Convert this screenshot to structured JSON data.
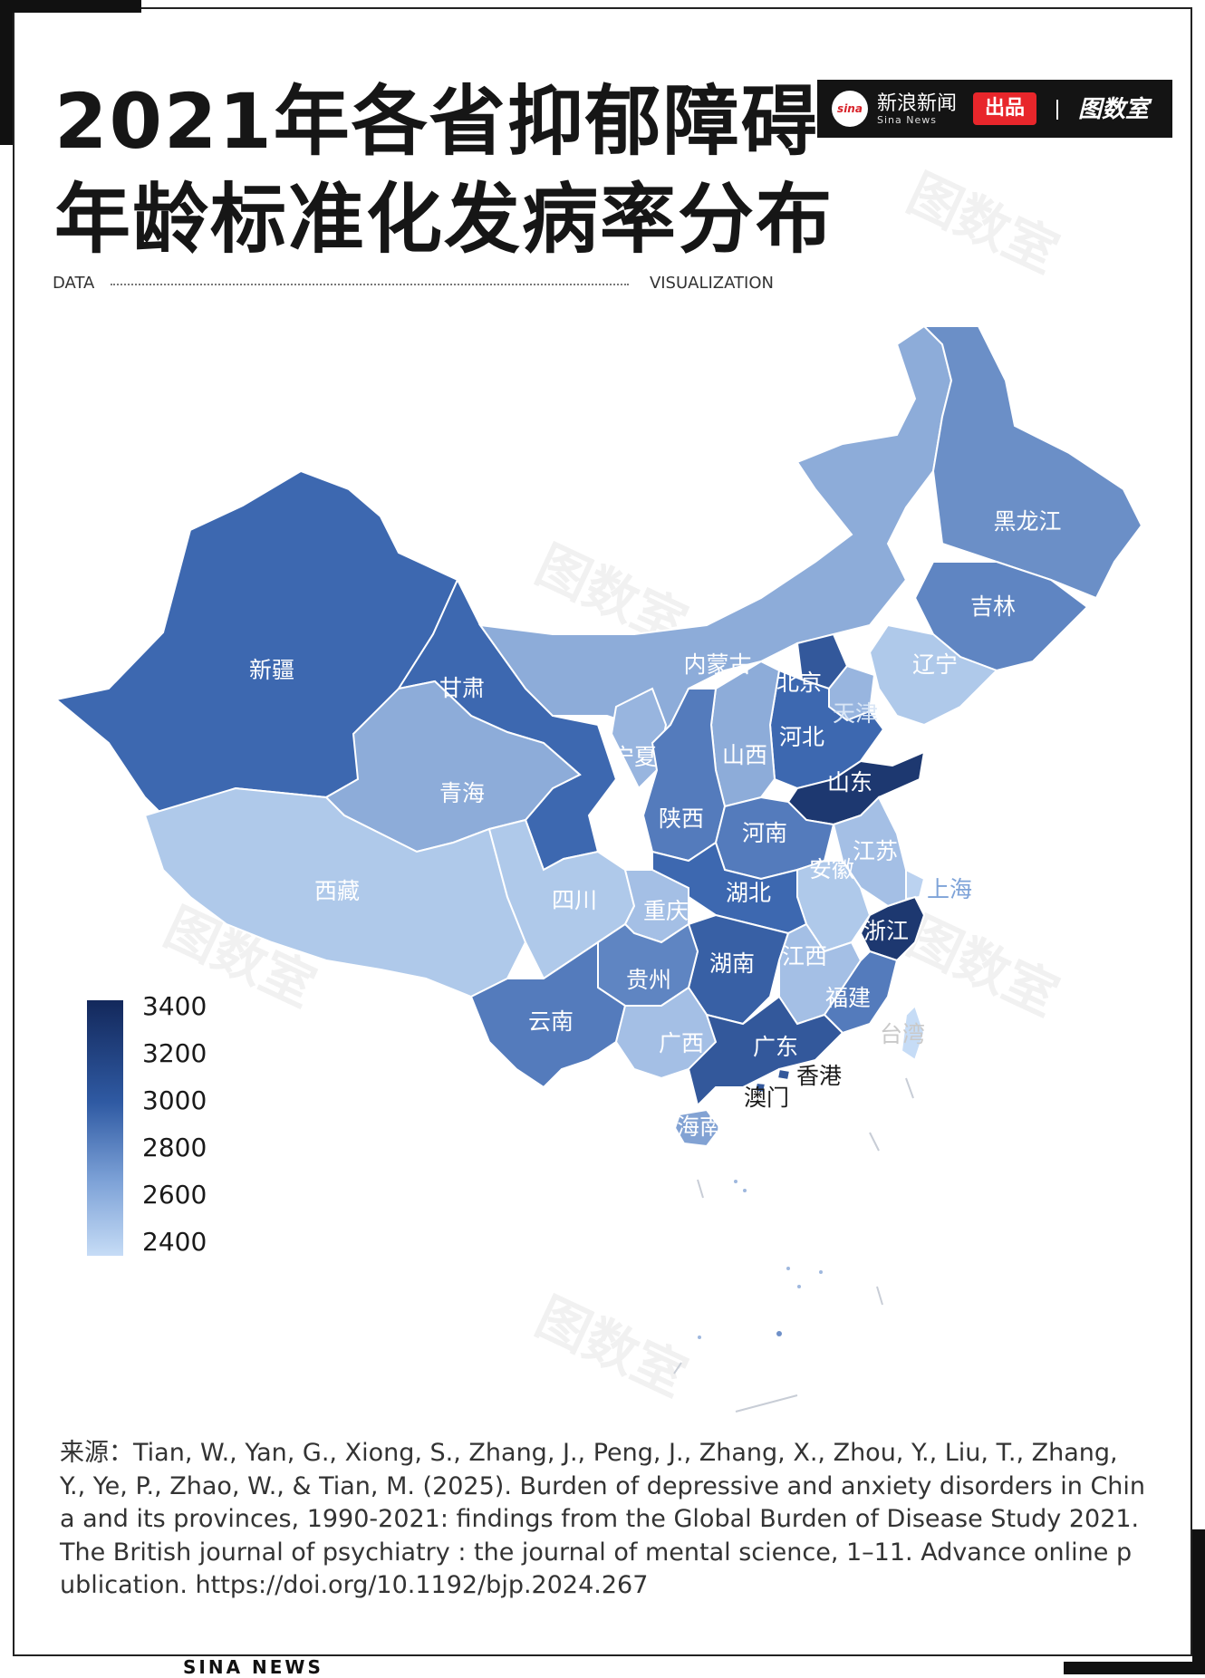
{
  "title": {
    "line1": "2021年各省抑郁障碍",
    "line2": "年龄标准化发病率分布"
  },
  "header_row": {
    "left": "DATA",
    "right": "VISUALIZATION"
  },
  "brand": {
    "logo_text": "sina",
    "name": "新浪新闻",
    "sub": "Sina News",
    "pin": "出品",
    "studio": "图数室"
  },
  "watermark": "图数室",
  "map_data": {
    "type": "choropleth",
    "metric": "年龄标准化发病率",
    "color_scale": {
      "min": 2400,
      "max": 3400,
      "low_color": "#c6dcf6",
      "high_color": "#13285b"
    },
    "regions": [
      {
        "name": "新疆",
        "level": 3000
      },
      {
        "name": "甘肃",
        "level": 3000
      },
      {
        "name": "内蒙古",
        "level": 2650
      },
      {
        "name": "黑龙江",
        "level": 2800
      },
      {
        "name": "吉林",
        "level": 2850
      },
      {
        "name": "辽宁",
        "level": 2500
      },
      {
        "name": "北京",
        "level": 3100
      },
      {
        "name": "天津",
        "level": 2600
      },
      {
        "name": "河北",
        "level": 3000
      },
      {
        "name": "山东",
        "level": 3300
      },
      {
        "name": "山西",
        "level": 2650
      },
      {
        "name": "宁夏",
        "level": 2600
      },
      {
        "name": "青海",
        "level": 2650
      },
      {
        "name": "西藏",
        "level": 2500
      },
      {
        "name": "陕西",
        "level": 2900
      },
      {
        "name": "河南",
        "level": 2900
      },
      {
        "name": "江苏",
        "level": 2550
      },
      {
        "name": "安徽",
        "level": 2500
      },
      {
        "name": "上海",
        "level": 2450
      },
      {
        "name": "四川",
        "level": 2500
      },
      {
        "name": "重庆",
        "level": 2550
      },
      {
        "name": "湖北",
        "level": 3000
      },
      {
        "name": "浙江",
        "level": 3300
      },
      {
        "name": "湖南",
        "level": 3050
      },
      {
        "name": "江西",
        "level": 2550
      },
      {
        "name": "贵州",
        "level": 2850
      },
      {
        "name": "云南",
        "level": 2900
      },
      {
        "name": "福建",
        "level": 2900
      },
      {
        "name": "台湾",
        "level": 2400
      },
      {
        "name": "广西",
        "level": 2550
      },
      {
        "name": "广东",
        "level": 3100
      },
      {
        "name": "香港",
        "level": 3100
      },
      {
        "name": "澳门",
        "level": 3100
      },
      {
        "name": "海南",
        "level": 2700
      }
    ]
  },
  "legend": {
    "ticks": [
      "3400",
      "3200",
      "3000",
      "2800",
      "2600",
      "2400"
    ]
  },
  "source": "来源：Tian, W., Yan, G., Xiong, S., Zhang, J., Peng, J., Zhang, X., Zhou, Y., Liu, T., Zhang, Y., Ye, P., Zhao, W., & Tian, M. (2025). Burden of depressive and anxiety disorders in China and its provinces, 1990-2021: findings from the Global Burden of Disease Study 2021. The British journal of psychiatry : the journal of mental science, 1–11. Advance online publication. https://doi.org/10.1192/bjp.2024.267",
  "footer": "SINA NEWS"
}
